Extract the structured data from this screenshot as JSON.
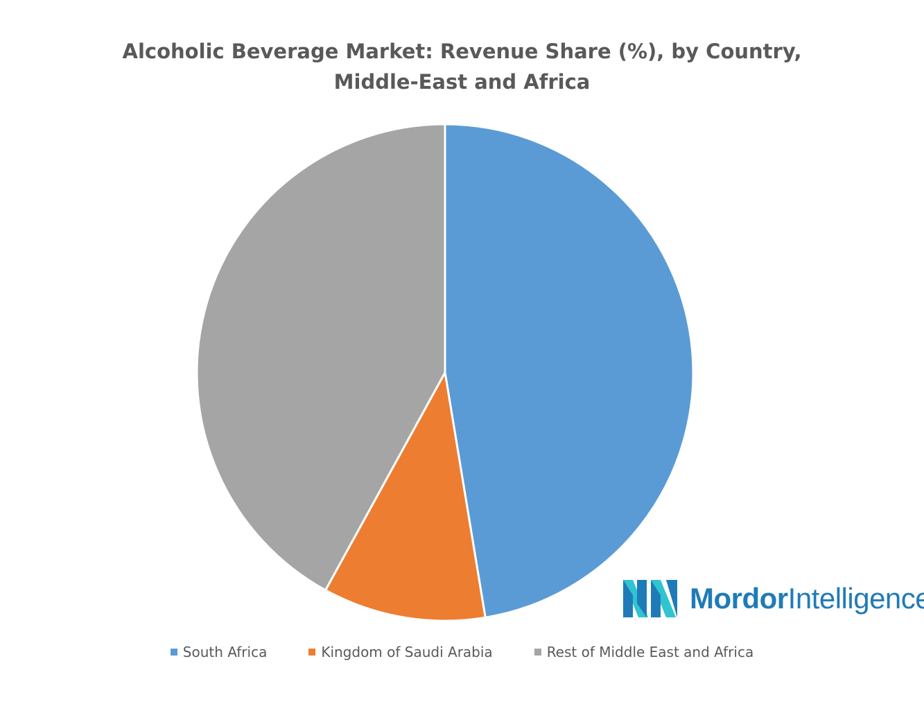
{
  "chart_data": {
    "type": "pie",
    "title": "Alcoholic Beverage Market: Revenue Share (%), by Country, Middle-East and Africa",
    "title_lines": [
      "Alcoholic Beverage Market: Revenue Share (%), by Country,",
      "Middle-East and Africa"
    ],
    "categories": [
      "South Africa",
      "Kingdom of Saudi Arabia",
      "Rest of Middle East and Africa"
    ],
    "values": [
      47.4,
      10.6,
      42.0
    ],
    "colors": [
      "#5b9bd5",
      "#ed7d31",
      "#a5a5a5"
    ],
    "legend": "bottom",
    "start_angle": "12 o'clock",
    "direction": "clockwise"
  },
  "logo": {
    "icon": "mordor-intelligence-logo-icon",
    "word1": "Mordor",
    "word2": "Intelligence"
  }
}
